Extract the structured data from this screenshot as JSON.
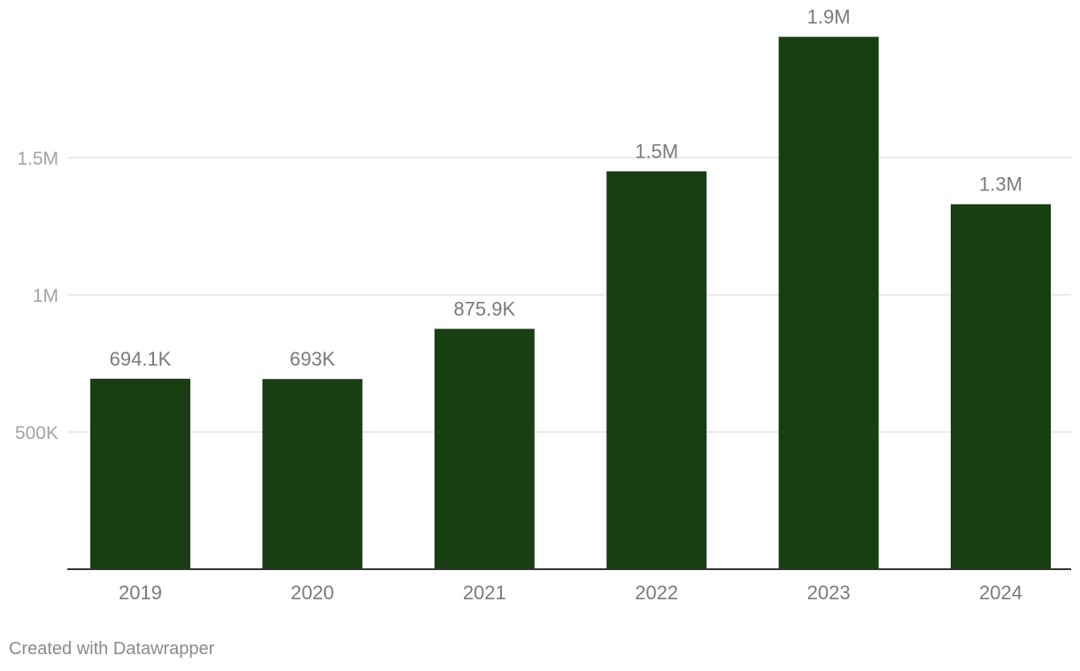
{
  "chart_data": {
    "type": "bar",
    "title": "",
    "xlabel": "",
    "ylabel": "",
    "categories": [
      "2019",
      "2020",
      "2021",
      "2022",
      "2023",
      "2024"
    ],
    "values": [
      694100,
      693000,
      875900,
      1450000,
      1940000,
      1330000
    ],
    "data_labels": [
      "694.1K",
      "693K",
      "875.9K",
      "1.5M",
      "1.9M",
      "1.3M"
    ],
    "yticks": [
      {
        "value": 500000,
        "label": "500K"
      },
      {
        "value": 1000000,
        "label": "1M"
      },
      {
        "value": 1500000,
        "label": "1.5M"
      }
    ],
    "ylim": [
      0,
      2000000
    ],
    "grid": true,
    "bar_color": "#173f12"
  },
  "footer": {
    "credit": "Created with Datawrapper"
  }
}
